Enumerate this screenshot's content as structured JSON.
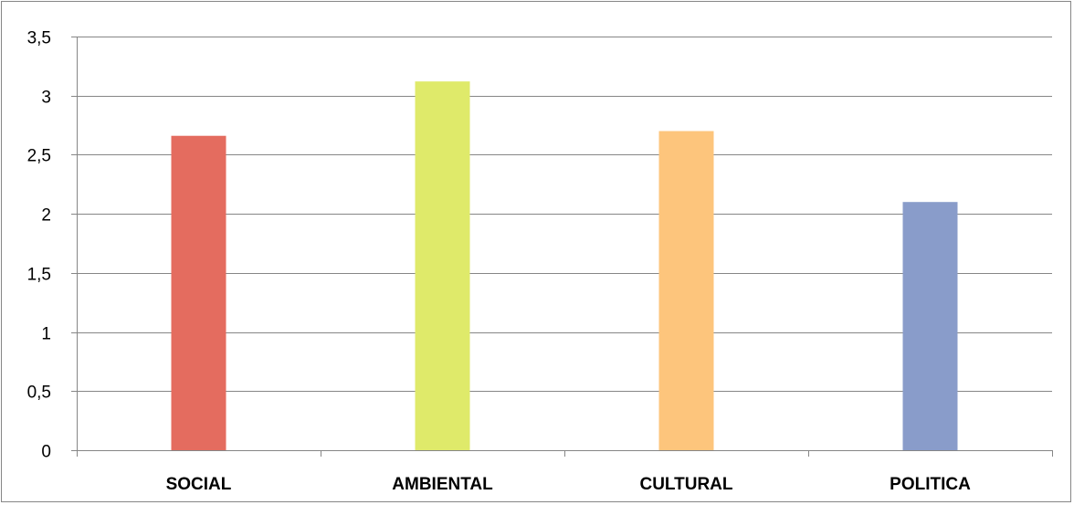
{
  "chart_data": {
    "type": "bar",
    "categories": [
      "SOCIAL",
      "AMBIENTAL",
      "CULTURAL",
      "POLITICA"
    ],
    "values": [
      2.66,
      3.12,
      2.7,
      2.1
    ],
    "colors": [
      "#e46c5f",
      "#dfea6a",
      "#fdc57c",
      "#899cca"
    ],
    "ylim": [
      0,
      3.5
    ],
    "yticks": [
      "0",
      "0,5",
      "1",
      "1,5",
      "2",
      "2,5",
      "3",
      "3,5"
    ],
    "ytick_values": [
      0,
      0.5,
      1,
      1.5,
      2,
      2.5,
      3,
      3.5
    ],
    "grid": true,
    "legend": "none",
    "title": "",
    "xlabel": "",
    "ylabel": ""
  }
}
